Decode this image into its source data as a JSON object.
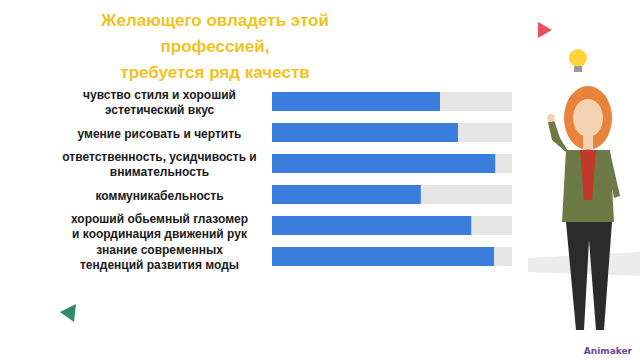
{
  "chart_data": {
    "type": "bar",
    "orientation": "horizontal",
    "title": "Желающего овладеть этой профессией,\nтребуется ряд качеств",
    "categories": [
      "чувство стиля и хороший\nэстетический вкус",
      "умение рисовать и чертить",
      "ответственность, усидчивость и\nвнимательность",
      "коммуникабельность",
      "хороший обьемный глазомер\nи координация движений рук",
      "знание современных\nтенденций развития моды"
    ],
    "values": [
      70,
      77.5,
      93,
      62,
      83,
      92.5
    ],
    "color": "#3b7ddd",
    "xlim": [
      0,
      100
    ],
    "tick_labels": "y",
    "grid": false,
    "watermark": "Animaker"
  }
}
